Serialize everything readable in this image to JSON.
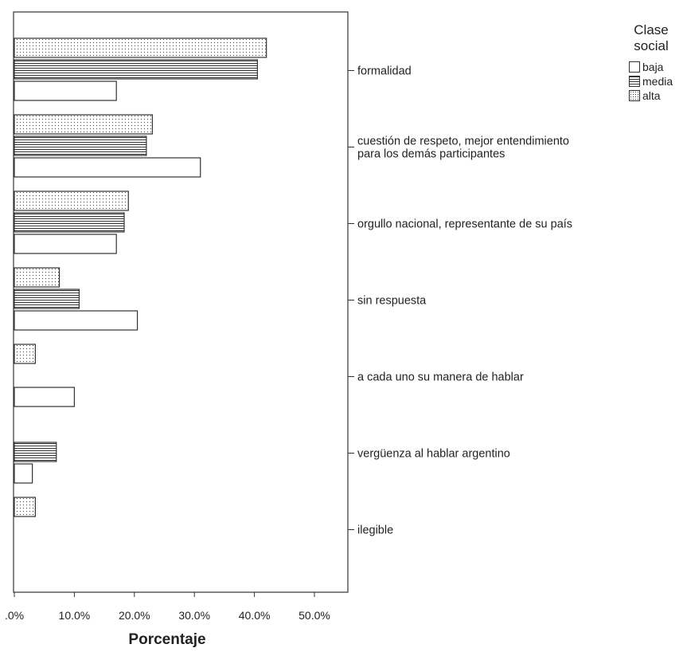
{
  "chart_data": {
    "type": "bar",
    "orientation": "horizontal",
    "xlabel": "Porcentaje",
    "xlim": [
      0,
      55
    ],
    "xticks": [
      ".0%",
      "10.0%",
      "20.0%",
      "30.0%",
      "40.0%",
      "50.0%"
    ],
    "xtick_values": [
      0,
      10,
      20,
      30,
      40,
      50
    ],
    "legend_title": "Clase social",
    "legend_position": "top-right",
    "categories": [
      "formalidad",
      "cuestión de respeto, mejor entendimiento para los demás participantes",
      "orgullo nacional, representante de su país",
      "sin respuesta",
      "a cada uno su manera de hablar",
      "vergüenza al hablar argentino",
      "ilegible"
    ],
    "category_lines": [
      [
        "formalidad"
      ],
      [
        "cuestión de respeto, mejor entendimiento",
        "para los demás participantes"
      ],
      [
        "orgullo nacional, representante de su país"
      ],
      [
        "sin respuesta"
      ],
      [
        "a cada uno su manera de hablar"
      ],
      [
        "vergüenza al hablar argentino"
      ],
      [
        "ilegible"
      ]
    ],
    "series": [
      {
        "name": "baja",
        "pattern": "none",
        "values": [
          17.0,
          31.0,
          17.0,
          20.5,
          10.0,
          3.0,
          0
        ]
      },
      {
        "name": "media",
        "pattern": "hlines",
        "values": [
          40.5,
          22.0,
          18.3,
          10.8,
          0,
          7.0,
          0
        ]
      },
      {
        "name": "alta",
        "pattern": "dots",
        "values": [
          42.0,
          23.0,
          19.0,
          7.5,
          3.5,
          0,
          3.5
        ]
      }
    ]
  }
}
